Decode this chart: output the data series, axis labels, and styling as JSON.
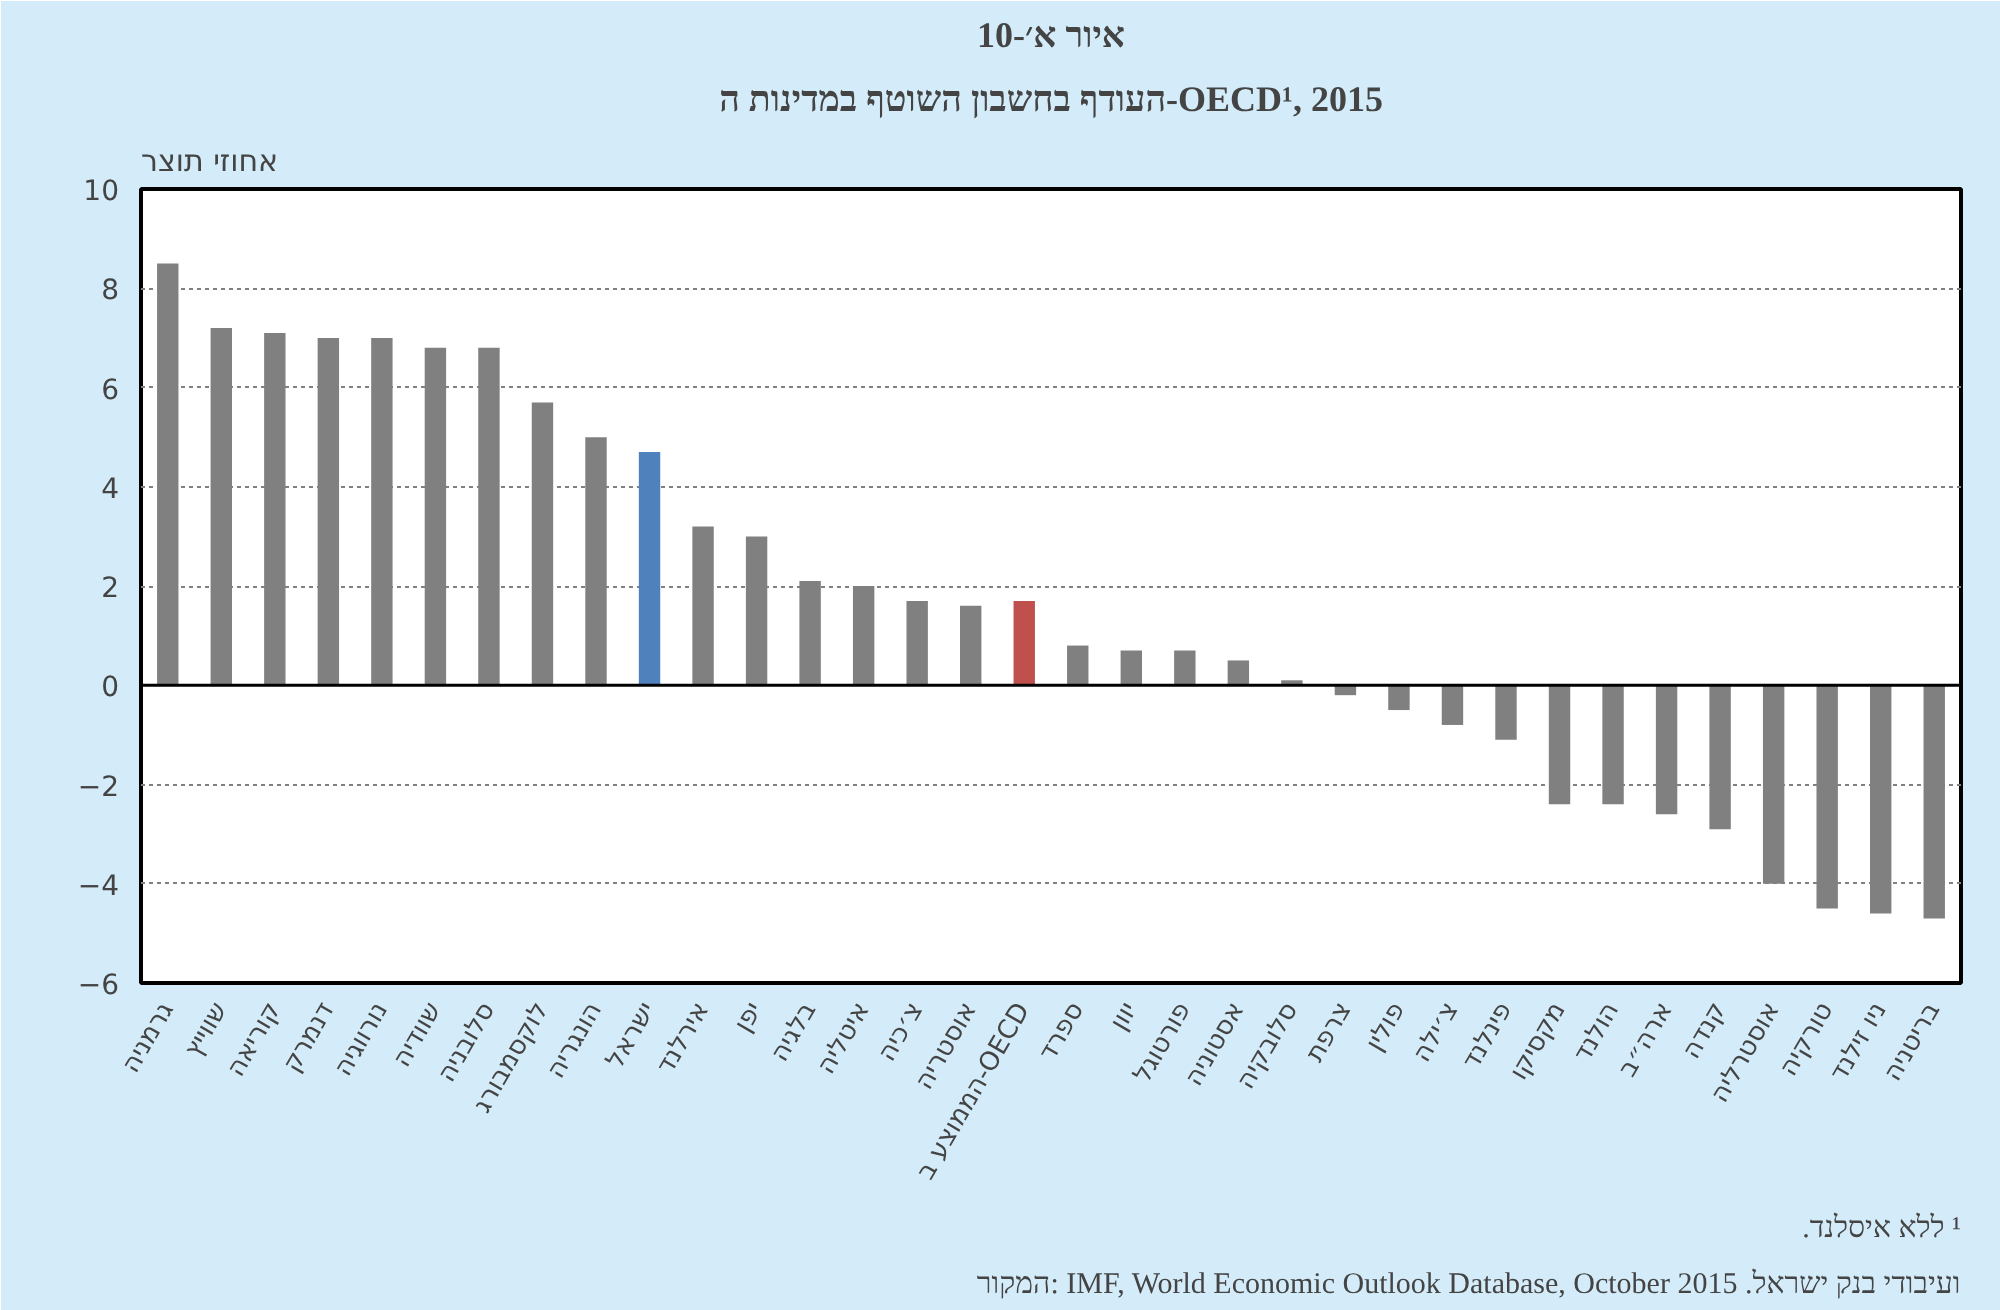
{
  "chart_data": {
    "type": "bar",
    "title": "איור א׳-10",
    "subtitle": "העודף בחשבון השוטף במדינות ה-OECD¹, 2015",
    "ylabel": "אחוזי תוצר",
    "categories": [
      "גרמניה",
      "שווייץ",
      "קוריאה",
      "דנמרק",
      "נורווגיה",
      "שוודיה",
      "סלובניה",
      "לוקסמבורג",
      "הונגריה",
      "ישראל",
      "אירלנד",
      "יפן",
      "בלגיה",
      "איטליה",
      "צ׳כיה",
      "אוסטריה",
      "הממוצע ב-OECD",
      "ספרד",
      "יוון",
      "פורטוגל",
      "אסטוניה",
      "סלובקיה",
      "צרפת",
      "פולין",
      "צ׳ילה",
      "פינלנד",
      "מקסיקו",
      "הולנד",
      "ארה״ב",
      "קנדה",
      "אוסטרליה",
      "טורקיה",
      "ניו זילנד",
      "בריטניה"
    ],
    "values": [
      8.5,
      7.2,
      7.1,
      7.0,
      7.0,
      6.8,
      6.8,
      5.7,
      5.0,
      4.7,
      3.2,
      3.0,
      2.1,
      2.0,
      1.7,
      1.6,
      1.7,
      0.8,
      0.7,
      0.7,
      0.5,
      0.1,
      -0.2,
      -0.5,
      -0.8,
      -1.1,
      -2.4,
      -2.4,
      -2.6,
      -2.9,
      -4.0,
      -4.5,
      -4.6,
      -4.7
    ],
    "colors": [
      "#808080",
      "#808080",
      "#808080",
      "#808080",
      "#808080",
      "#808080",
      "#808080",
      "#808080",
      "#808080",
      "#4f81bd",
      "#808080",
      "#808080",
      "#808080",
      "#808080",
      "#808080",
      "#808080",
      "#c0504d",
      "#808080",
      "#808080",
      "#808080",
      "#808080",
      "#808080",
      "#808080",
      "#808080",
      "#808080",
      "#808080",
      "#808080",
      "#808080",
      "#808080",
      "#808080",
      "#808080",
      "#808080",
      "#808080",
      "#808080"
    ],
    "ylim": [
      -6,
      10
    ],
    "yticks": [
      -6,
      -4,
      -2,
      0,
      2,
      4,
      6,
      8,
      10
    ],
    "grid": "y",
    "annotations": [
      "¹ ללא איסלנד.",
      "המקור: IMF, World Economic Outlook Database, October 2015 ועיבודי בנק ישראל."
    ]
  }
}
